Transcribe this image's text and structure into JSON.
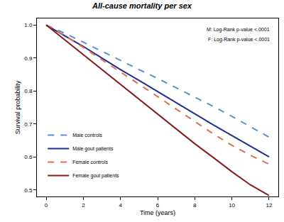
{
  "chart_data": {
    "type": "line",
    "title": "All-cause mortality per sex",
    "x_label": "Time (years)",
    "y_label": "Survival probability",
    "annotations": [
      "M: Log-Rank p-value <.0001",
      "F: Log-Rank p-value <.0001"
    ],
    "x": [
      0,
      1,
      2,
      3,
      4,
      5,
      6,
      7,
      8,
      9,
      10,
      11,
      12
    ],
    "series": [
      {
        "name": "Male controls",
        "color": "#5b8fd6",
        "line_style": "dashed",
        "values": [
          1.0,
          0.975,
          0.948,
          0.92,
          0.893,
          0.865,
          0.838,
          0.81,
          0.782,
          0.753,
          0.723,
          0.692,
          0.66
        ]
      },
      {
        "name": "Male gout patients",
        "color": "#1f2e8f",
        "line_style": "solid",
        "values": [
          1.0,
          0.968,
          0.935,
          0.9,
          0.865,
          0.832,
          0.798,
          0.765,
          0.73,
          0.697,
          0.665,
          0.633,
          0.6
        ]
      },
      {
        "name": "Female controls",
        "color": "#e0704a",
        "line_style": "dashed",
        "values": [
          1.0,
          0.968,
          0.932,
          0.895,
          0.858,
          0.82,
          0.783,
          0.745,
          0.707,
          0.67,
          0.635,
          0.605,
          0.578
        ]
      },
      {
        "name": "Female gout patients",
        "color": "#8b1a1a",
        "line_style": "solid",
        "values": [
          1.0,
          0.955,
          0.91,
          0.865,
          0.82,
          0.775,
          0.73,
          0.685,
          0.64,
          0.598,
          0.555,
          0.515,
          0.483
        ]
      }
    ],
    "xlim": [
      -0.5,
      12.5
    ],
    "xticks": [
      0,
      2,
      4,
      6,
      8,
      10,
      12
    ],
    "ylim": [
      0.48,
      1.02
    ],
    "yticks": [
      0.5,
      0.6,
      0.7,
      0.8,
      0.9,
      {
        "value": 1,
        "label": "1.0"
      }
    ],
    "grid": false,
    "legend": "lower left"
  }
}
